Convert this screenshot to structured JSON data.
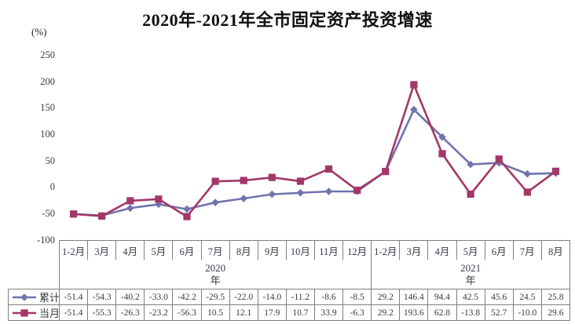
{
  "title": "2020年-2021年全市固定资产投资增速",
  "unit_label": "(%)",
  "colors": {
    "cumulative_series": "#7173AC",
    "monthly_series": "#A33768",
    "table_border": "#7F7F7F",
    "axis_text": "#333B44",
    "title_text": "#111111"
  },
  "chart_data": {
    "type": "line",
    "title": "2020年-2021年全市固定资产投资增速",
    "ylabel": "(%)",
    "ylim": [
      -100,
      250
    ],
    "yticks": [
      "250",
      "200",
      "150",
      "100",
      "50",
      "0",
      "-50",
      "-100"
    ],
    "grid": false,
    "legend_position": "table-rows-left",
    "categories": [
      "1-2月",
      "3月",
      "4月",
      "5月",
      "6月",
      "7月",
      "8月",
      "9月",
      "10月",
      "11月",
      "12月",
      "1-2月",
      "3月",
      "4月",
      "5月",
      "6月",
      "7月",
      "8月"
    ],
    "groups": [
      {
        "label": "2020年",
        "span": 11
      },
      {
        "label": "2021年",
        "span": 7
      }
    ],
    "series": [
      {
        "name": "累计",
        "marker": "diamond",
        "color": "#7173AC",
        "values": [
          "-51.4",
          "-54.3",
          "-40.2",
          "-33.0",
          "-42.2",
          "-29.5",
          "-22.0",
          "-14.0",
          "-11.2",
          "-8.6",
          "-8.5",
          "29.2",
          "146.4",
          "94.4",
          "42.5",
          "45.6",
          "24.5",
          "25.8"
        ]
      },
      {
        "name": "当月",
        "marker": "square",
        "color": "#A33768",
        "values": [
          "-51.4",
          "-55.3",
          "-26.3",
          "-23.2",
          "-56.3",
          "10.5",
          "12.1",
          "17.9",
          "10.7",
          "33.9",
          "-6.3",
          "29.2",
          "193.6",
          "62.8",
          "-13.8",
          "52.7",
          "-10.0",
          "29.6"
        ]
      }
    ]
  }
}
